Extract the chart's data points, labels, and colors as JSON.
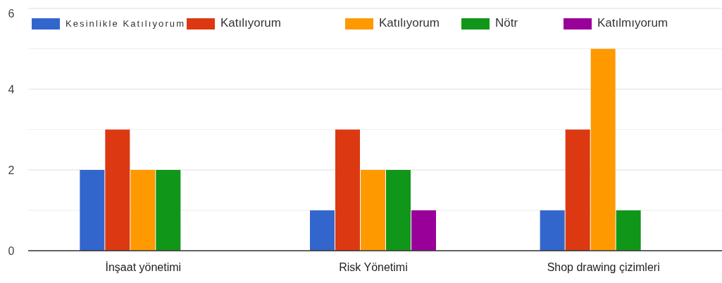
{
  "chart_data": {
    "type": "bar",
    "categories": [
      "İnşaat yönetimi",
      "Risk Yönetimi",
      "Shop drawing çizimleri"
    ],
    "series": [
      {
        "name": "Kesinlikle Katılıyorum",
        "color": "#3366cc",
        "values": [
          2,
          1,
          1
        ]
      },
      {
        "name": "Katılıyorum",
        "color": "#dc3912",
        "values": [
          3,
          3,
          3
        ]
      },
      {
        "name": "Katılıyorum",
        "color": "#ff9900",
        "values": [
          2,
          2,
          5
        ]
      },
      {
        "name": "Nötr",
        "color": "#109618",
        "values": [
          2,
          2,
          1
        ]
      },
      {
        "name": "Katılmıyorum",
        "color": "#990099",
        "values": [
          0,
          1,
          0
        ]
      }
    ],
    "ylim": [
      0,
      6
    ],
    "yticks": [
      0,
      {
        "value": 1,
        "label": null
      },
      2,
      {
        "value": 3,
        "label": null
      },
      4,
      {
        "value": 5,
        "label": null
      },
      6
    ],
    "grid": "y",
    "legend": "top"
  }
}
